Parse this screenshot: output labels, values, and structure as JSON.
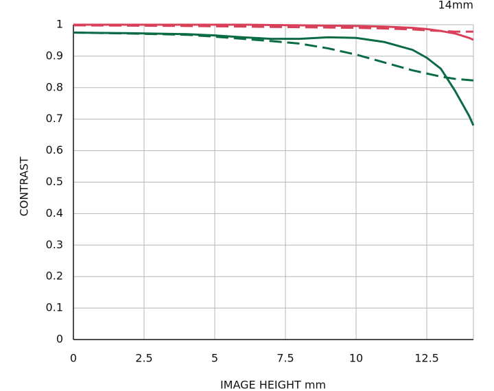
{
  "chart_data": {
    "type": "line",
    "title": "14mm",
    "x_label": "IMAGE HEIGHT   mm",
    "y_label": "CONTRAST",
    "x": [
      0,
      2,
      4,
      5,
      6,
      7,
      8,
      9,
      10,
      11,
      12,
      12.5,
      13,
      13.5,
      14,
      14.15
    ],
    "series": [
      {
        "color": "#d8405a",
        "line_style": "solid",
        "values": [
          1,
          1,
          1,
          1,
          1,
          0.999,
          0.998,
          0.997,
          0.996,
          0.994,
          0.99,
          0.986,
          0.98,
          0.972,
          0.958,
          0.952
        ]
      },
      {
        "color": "#d8405a",
        "line_style": "dashed",
        "values": [
          0.998,
          0.997,
          0.996,
          0.995,
          0.994,
          0.993,
          0.992,
          0.991,
          0.99,
          0.988,
          0.985,
          0.982,
          0.98,
          0.978,
          0.978,
          0.978
        ]
      },
      {
        "color": "#0b6b45",
        "line_style": "solid",
        "values": [
          0.975,
          0.973,
          0.97,
          0.966,
          0.96,
          0.955,
          0.955,
          0.96,
          0.958,
          0.945,
          0.92,
          0.895,
          0.86,
          0.79,
          0.71,
          0.68
        ]
      },
      {
        "color": "#0b6b45",
        "line_style": "dashed",
        "values": [
          0.975,
          0.972,
          0.968,
          0.962,
          0.955,
          0.948,
          0.94,
          0.925,
          0.905,
          0.88,
          0.855,
          0.845,
          0.835,
          0.828,
          0.824,
          0.823
        ]
      }
    ],
    "xlim": [
      0,
      14.15
    ],
    "xticks": [
      0,
      2.5,
      5,
      7.5,
      10,
      12.5
    ],
    "ylim": [
      0,
      1
    ],
    "yticks": [
      0,
      0.1,
      0.2,
      0.3,
      0.4,
      0.5,
      0.6,
      0.7,
      0.8,
      0.9,
      1
    ],
    "grid": true
  }
}
